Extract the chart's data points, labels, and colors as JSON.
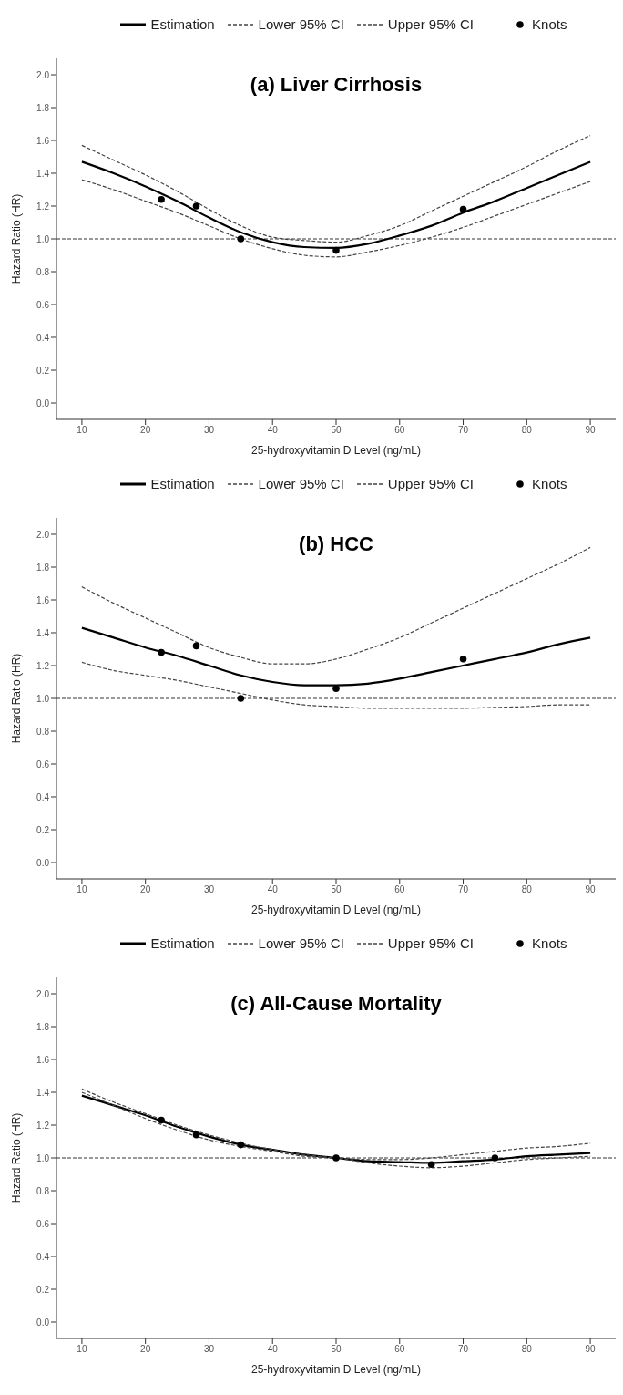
{
  "chart_data": [
    {
      "type": "line",
      "title": "(a) Liver Cirrhosis",
      "xlabel": "25-hydroxyvitamin D Level (ng/mL)",
      "ylabel": "Hazard Ratio (HR)",
      "xlim": [
        6,
        94
      ],
      "xticks": [
        10,
        20,
        30,
        40,
        50,
        60,
        70,
        80,
        90
      ],
      "ylim": [
        -0.1,
        2.1
      ],
      "yticks": [
        {
          "value": 0,
          "label": "0.0"
        },
        0.2,
        0.4,
        0.6,
        0.8,
        {
          "value": 1,
          "label": "1.0"
        },
        1.2,
        1.4,
        1.6,
        1.8,
        {
          "value": 2,
          "label": "2.0"
        }
      ],
      "grid": false,
      "legend": "top",
      "marker": "none",
      "ref_lines": [
        {
          "axis": "y",
          "value": 1,
          "color": "#333333",
          "line_style": "dashed"
        }
      ],
      "series": [
        {
          "name": "Estimation",
          "color": "#000000",
          "line_style": "solid",
          "x": [
            10,
            15,
            20,
            25,
            30,
            35,
            40,
            45,
            50,
            55,
            60,
            65,
            70,
            75,
            80,
            85,
            90
          ],
          "values": [
            1.47,
            1.4,
            1.32,
            1.23,
            1.13,
            1.04,
            0.98,
            0.95,
            0.945,
            0.97,
            1.02,
            1.08,
            1.16,
            1.23,
            1.31,
            1.39,
            1.47
          ]
        },
        {
          "name": "Lower 95% CI",
          "color": "#444444",
          "line_style": "dashed",
          "x": [
            10,
            15,
            20,
            25,
            30,
            35,
            40,
            45,
            50,
            55,
            60,
            65,
            70,
            75,
            80,
            85,
            90
          ],
          "values": [
            1.36,
            1.3,
            1.23,
            1.16,
            1.08,
            1.0,
            0.94,
            0.9,
            0.89,
            0.92,
            0.96,
            1.01,
            1.07,
            1.14,
            1.21,
            1.28,
            1.35
          ]
        },
        {
          "name": "Upper 95% CI",
          "color": "#444444",
          "line_style": "dashed",
          "x": [
            10,
            15,
            20,
            25,
            30,
            35,
            40,
            45,
            50,
            55,
            60,
            65,
            70,
            75,
            80,
            85,
            90
          ],
          "values": [
            1.57,
            1.48,
            1.39,
            1.29,
            1.18,
            1.08,
            1.01,
            0.99,
            0.98,
            1.02,
            1.08,
            1.17,
            1.26,
            1.35,
            1.44,
            1.54,
            1.63
          ]
        },
        {
          "name": "Knots",
          "type": "scatter",
          "color": "#000000",
          "marker": "circle",
          "x": [
            22.5,
            28,
            35,
            50,
            70
          ],
          "values": [
            1.24,
            1.2,
            1.0,
            0.93,
            1.18
          ]
        }
      ]
    },
    {
      "type": "line",
      "title": "(b) HCC",
      "xlabel": "25-hydroxyvitamin D Level (ng/mL)",
      "ylabel": "Hazard Ratio (HR)",
      "xlim": [
        6,
        94
      ],
      "xticks": [
        10,
        20,
        30,
        40,
        50,
        60,
        70,
        80,
        90
      ],
      "ylim": [
        -0.1,
        2.1
      ],
      "yticks": [
        {
          "value": 0,
          "label": "0.0"
        },
        0.2,
        0.4,
        0.6,
        0.8,
        {
          "value": 1,
          "label": "1.0"
        },
        1.2,
        1.4,
        1.6,
        1.8,
        {
          "value": 2,
          "label": "2.0"
        }
      ],
      "grid": false,
      "legend": "top",
      "marker": "none",
      "ref_lines": [
        {
          "axis": "y",
          "value": 1,
          "color": "#333333",
          "line_style": "dashed"
        }
      ],
      "series": [
        {
          "name": "Estimation",
          "color": "#000000",
          "line_style": "solid",
          "x": [
            10,
            15,
            20,
            25,
            30,
            35,
            40,
            45,
            50,
            55,
            60,
            65,
            70,
            75,
            80,
            85,
            90
          ],
          "values": [
            1.43,
            1.37,
            1.31,
            1.26,
            1.2,
            1.14,
            1.1,
            1.08,
            1.08,
            1.09,
            1.12,
            1.16,
            1.2,
            1.24,
            1.28,
            1.33,
            1.37
          ]
        },
        {
          "name": "Lower 95% CI",
          "color": "#444444",
          "line_style": "dashed",
          "x": [
            10,
            15,
            20,
            25,
            30,
            35,
            40,
            45,
            50,
            55,
            60,
            65,
            70,
            75,
            80,
            85,
            90
          ],
          "values": [
            1.22,
            1.17,
            1.14,
            1.11,
            1.07,
            1.03,
            0.99,
            0.96,
            0.95,
            0.94,
            0.94,
            0.94,
            0.94,
            0.945,
            0.95,
            0.96,
            0.96
          ]
        },
        {
          "name": "Upper 95% CI",
          "color": "#444444",
          "line_style": "dashed",
          "x": [
            10,
            15,
            20,
            25,
            30,
            35,
            40,
            45,
            50,
            55,
            60,
            65,
            70,
            75,
            80,
            85,
            90
          ],
          "values": [
            1.68,
            1.58,
            1.49,
            1.4,
            1.31,
            1.25,
            1.21,
            1.21,
            1.24,
            1.3,
            1.37,
            1.46,
            1.55,
            1.64,
            1.73,
            1.82,
            1.92
          ]
        },
        {
          "name": "Knots",
          "type": "scatter",
          "color": "#000000",
          "marker": "circle",
          "x": [
            22.5,
            28,
            35,
            50,
            70
          ],
          "values": [
            1.28,
            1.32,
            1.0,
            1.06,
            1.24
          ]
        }
      ]
    },
    {
      "type": "line",
      "title": "(c) All-Cause Mortality",
      "xlabel": "25-hydroxyvitamin D Level (ng/mL)",
      "ylabel": "Hazard Ratio (HR)",
      "xlim": [
        6,
        94
      ],
      "xticks": [
        10,
        20,
        30,
        40,
        50,
        60,
        70,
        80,
        90
      ],
      "ylim": [
        -0.1,
        2.1
      ],
      "yticks": [
        {
          "value": 0,
          "label": "0.0"
        },
        0.2,
        0.4,
        0.6,
        0.8,
        {
          "value": 1,
          "label": "1.0"
        },
        1.2,
        1.4,
        1.6,
        1.8,
        {
          "value": 2,
          "label": "2.0"
        }
      ],
      "grid": false,
      "legend": "top",
      "marker": "none",
      "ref_lines": [
        {
          "axis": "y",
          "value": 1,
          "color": "#333333",
          "line_style": "dashed"
        }
      ],
      "series": [
        {
          "name": "Estimation",
          "color": "#000000",
          "line_style": "solid",
          "x": [
            10,
            15,
            20,
            25,
            30,
            35,
            40,
            45,
            50,
            55,
            60,
            65,
            70,
            75,
            80,
            85,
            90
          ],
          "values": [
            1.38,
            1.32,
            1.26,
            1.19,
            1.13,
            1.08,
            1.05,
            1.02,
            1.0,
            0.98,
            0.975,
            0.97,
            0.98,
            0.99,
            1.01,
            1.02,
            1.03
          ]
        },
        {
          "name": "Lower 95% CI",
          "color": "#444444",
          "line_style": "dashed",
          "x": [
            10,
            15,
            20,
            25,
            30,
            35,
            40,
            45,
            50,
            55,
            60,
            65,
            70,
            75,
            80,
            85,
            90
          ],
          "values": [
            1.4,
            1.32,
            1.24,
            1.17,
            1.11,
            1.07,
            1.04,
            1.01,
            1.0,
            0.97,
            0.95,
            0.94,
            0.95,
            0.97,
            0.99,
            1.0,
            1.01
          ]
        },
        {
          "name": "Upper 95% CI",
          "color": "#444444",
          "line_style": "dashed",
          "x": [
            10,
            15,
            20,
            25,
            30,
            35,
            40,
            45,
            50,
            55,
            60,
            65,
            70,
            75,
            80,
            85,
            90
          ],
          "values": [
            1.42,
            1.34,
            1.27,
            1.2,
            1.14,
            1.09,
            1.05,
            1.02,
            1.0,
            0.99,
            0.99,
            1.0,
            1.02,
            1.04,
            1.06,
            1.07,
            1.09
          ]
        },
        {
          "name": "Knots",
          "type": "scatter",
          "color": "#000000",
          "marker": "circle",
          "x": [
            22.5,
            28,
            35,
            50,
            65,
            75
          ],
          "values": [
            1.23,
            1.14,
            1.08,
            1.0,
            0.96,
            1.0
          ]
        }
      ]
    }
  ]
}
